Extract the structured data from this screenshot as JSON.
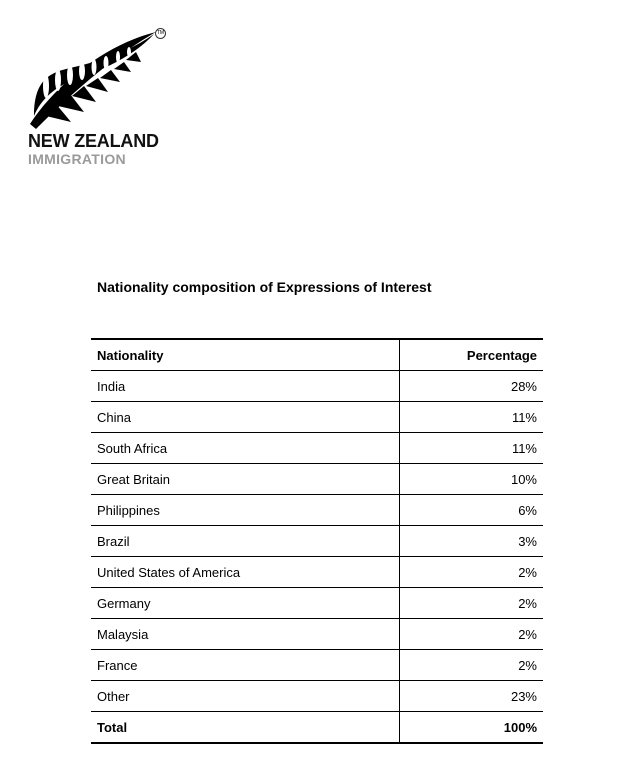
{
  "logo": {
    "name": "NEW ZEALAND",
    "sub": "IMMIGRATION",
    "tm": "TM"
  },
  "title": "Nationality composition of Expressions of Interest",
  "table": {
    "headers": [
      "Nationality",
      "Percentage"
    ],
    "rows": [
      [
        "India",
        "28%"
      ],
      [
        "China",
        "11%"
      ],
      [
        "South Africa",
        "11%"
      ],
      [
        "Great Britain",
        "10%"
      ],
      [
        "Philippines",
        "6%"
      ],
      [
        "Brazil",
        "3%"
      ],
      [
        "United States of America",
        "2%"
      ],
      [
        "Germany",
        "2%"
      ],
      [
        "Malaysia",
        "2%"
      ],
      [
        "France",
        "2%"
      ],
      [
        "Other",
        "23%"
      ]
    ],
    "total": [
      "Total",
      "100%"
    ]
  }
}
